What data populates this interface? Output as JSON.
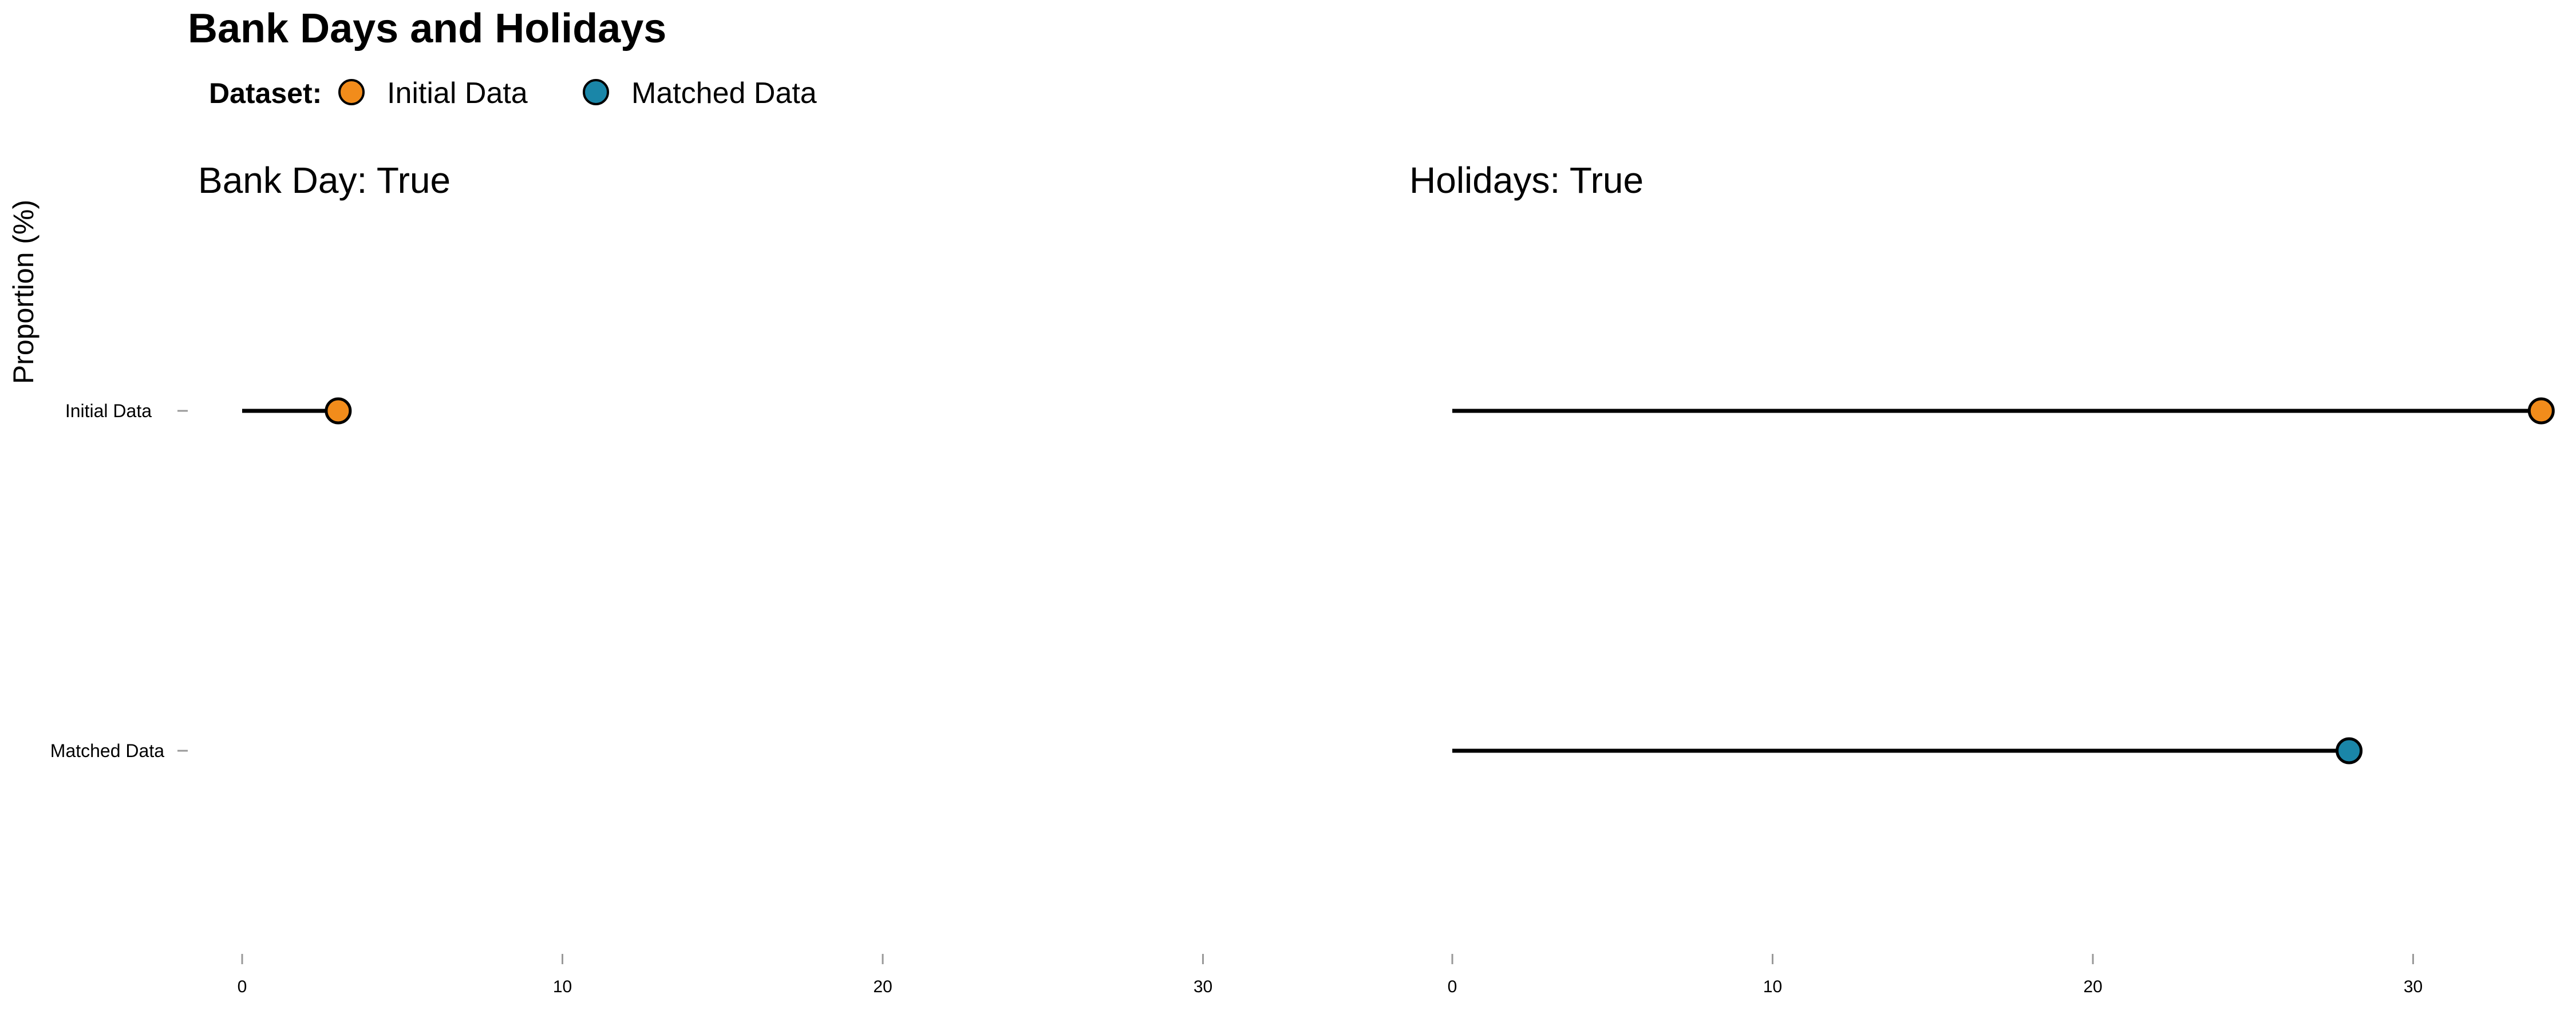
{
  "chart_data": {
    "type": "lollipop",
    "title": "Bank Days and Holidays",
    "ylabel": "Proportion (%)",
    "legend": {
      "title": "Dataset:",
      "placement": "top-left",
      "entries": [
        {
          "name": "Initial Data",
          "color": "#F28C1B"
        },
        {
          "name": "Matched Data",
          "color": "#1A86A8"
        }
      ]
    },
    "categories": [
      "Initial Data",
      "Matched Data"
    ],
    "xlim": [
      0,
      35
    ],
    "xticks": [
      0,
      10,
      20,
      30
    ],
    "grid": false,
    "panels": [
      {
        "title": "Bank Day: True",
        "points": [
          {
            "category": "Initial Data",
            "value": 3,
            "color": "#F28C1B"
          }
        ]
      },
      {
        "title": "Holidays: True",
        "points": [
          {
            "category": "Initial Data",
            "value": 34,
            "color": "#F28C1B"
          },
          {
            "category": "Matched Data",
            "value": 28,
            "color": "#1A86A8"
          }
        ]
      }
    ]
  }
}
